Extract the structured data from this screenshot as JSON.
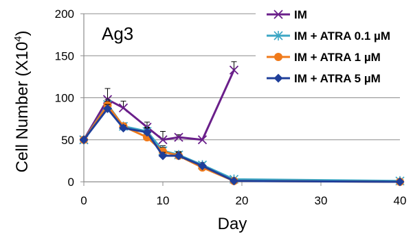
{
  "chart_data": {
    "type": "line",
    "xlabel": "Day",
    "ylabel": "Cell Number (X10",
    "ylabel_sup": "4",
    "ylabel_close": ")",
    "annotation": "Ag3",
    "xlim": [
      0,
      40
    ],
    "ylim": [
      0,
      200
    ],
    "x_ticks": [
      0,
      10,
      20,
      30,
      40
    ],
    "y_ticks": [
      0,
      50,
      100,
      150,
      200
    ],
    "grid": "horizontal",
    "legend": "top-right",
    "series": [
      {
        "name": "IM",
        "color": "#6a1f8a",
        "marker": "x",
        "x": [
          0,
          3,
          5,
          8,
          10,
          12,
          15,
          19
        ],
        "y": [
          50,
          98,
          88,
          65,
          50,
          53,
          50,
          133
        ],
        "err": [
          0,
          13,
          8,
          6,
          10,
          3,
          0,
          10
        ]
      },
      {
        "name": "IM + ATRA 0.1 µM",
        "color": "#3ba6c4",
        "marker": "asterisk",
        "x": [
          0,
          3,
          5,
          8,
          10,
          12,
          15,
          19,
          40
        ],
        "y": [
          50,
          92,
          66,
          60,
          37,
          32,
          20,
          3,
          1
        ],
        "err": [
          0,
          6,
          4,
          5,
          6,
          4,
          3,
          1,
          0
        ]
      },
      {
        "name": "IM + ATRA 1 µM",
        "color": "#f07a1a",
        "marker": "circle",
        "x": [
          0,
          3,
          5,
          8,
          10,
          12,
          15,
          19,
          40
        ],
        "y": [
          50,
          91,
          66,
          53,
          36,
          31,
          17,
          1,
          0
        ],
        "err": [
          0,
          5,
          4,
          5,
          5,
          4,
          2,
          1,
          0
        ]
      },
      {
        "name": "IM + ATRA 5 µM",
        "color": "#1f3f9a",
        "marker": "diamond",
        "x": [
          0,
          3,
          5,
          8,
          10,
          12,
          15,
          19,
          40
        ],
        "y": [
          50,
          87,
          64,
          59,
          31,
          31,
          19,
          1,
          0
        ],
        "err": [
          0,
          5,
          3,
          5,
          4,
          4,
          2,
          1,
          0
        ]
      }
    ]
  }
}
